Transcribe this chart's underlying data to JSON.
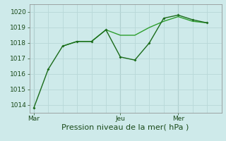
{
  "title": "",
  "xlabel": "Pression niveau de la mer( hPa )",
  "ylabel": "",
  "bg_color": "#ceeaea",
  "grid_color": "#b8d8d8",
  "line_color_dark": "#1a6b1a",
  "line_color_light": "#2d9e2d",
  "ylim": [
    1013.5,
    1020.5
  ],
  "yticks": [
    1014,
    1015,
    1016,
    1017,
    1018,
    1019,
    1020
  ],
  "vline_color": "#8aabab",
  "series1_x": [
    0,
    0.5,
    1.0,
    1.5,
    2.0,
    2.5,
    3.0,
    3.5,
    4.0,
    4.5,
    5.0,
    5.5,
    6.0
  ],
  "series1_y": [
    1013.8,
    1016.3,
    1017.8,
    1018.1,
    1018.1,
    1018.85,
    1017.1,
    1016.9,
    1018.0,
    1019.6,
    1019.8,
    1019.5,
    1019.3
  ],
  "series2_x": [
    1.0,
    1.5,
    2.0,
    2.5,
    3.0,
    3.5,
    4.0,
    4.5,
    5.0,
    5.5,
    6.0
  ],
  "series2_y": [
    1017.8,
    1018.1,
    1018.1,
    1018.85,
    1018.5,
    1018.5,
    1019.0,
    1019.4,
    1019.7,
    1019.4,
    1019.3
  ],
  "xlabel_fontsize": 8,
  "tick_fontsize": 6.5,
  "xtick_positions": [
    0,
    3.0,
    5.0
  ],
  "xtick_labels": [
    "Mar",
    "Jeu",
    "Mer"
  ],
  "vlines_x": [
    0,
    3.0,
    5.0
  ],
  "xlim": [
    -0.15,
    6.5
  ]
}
